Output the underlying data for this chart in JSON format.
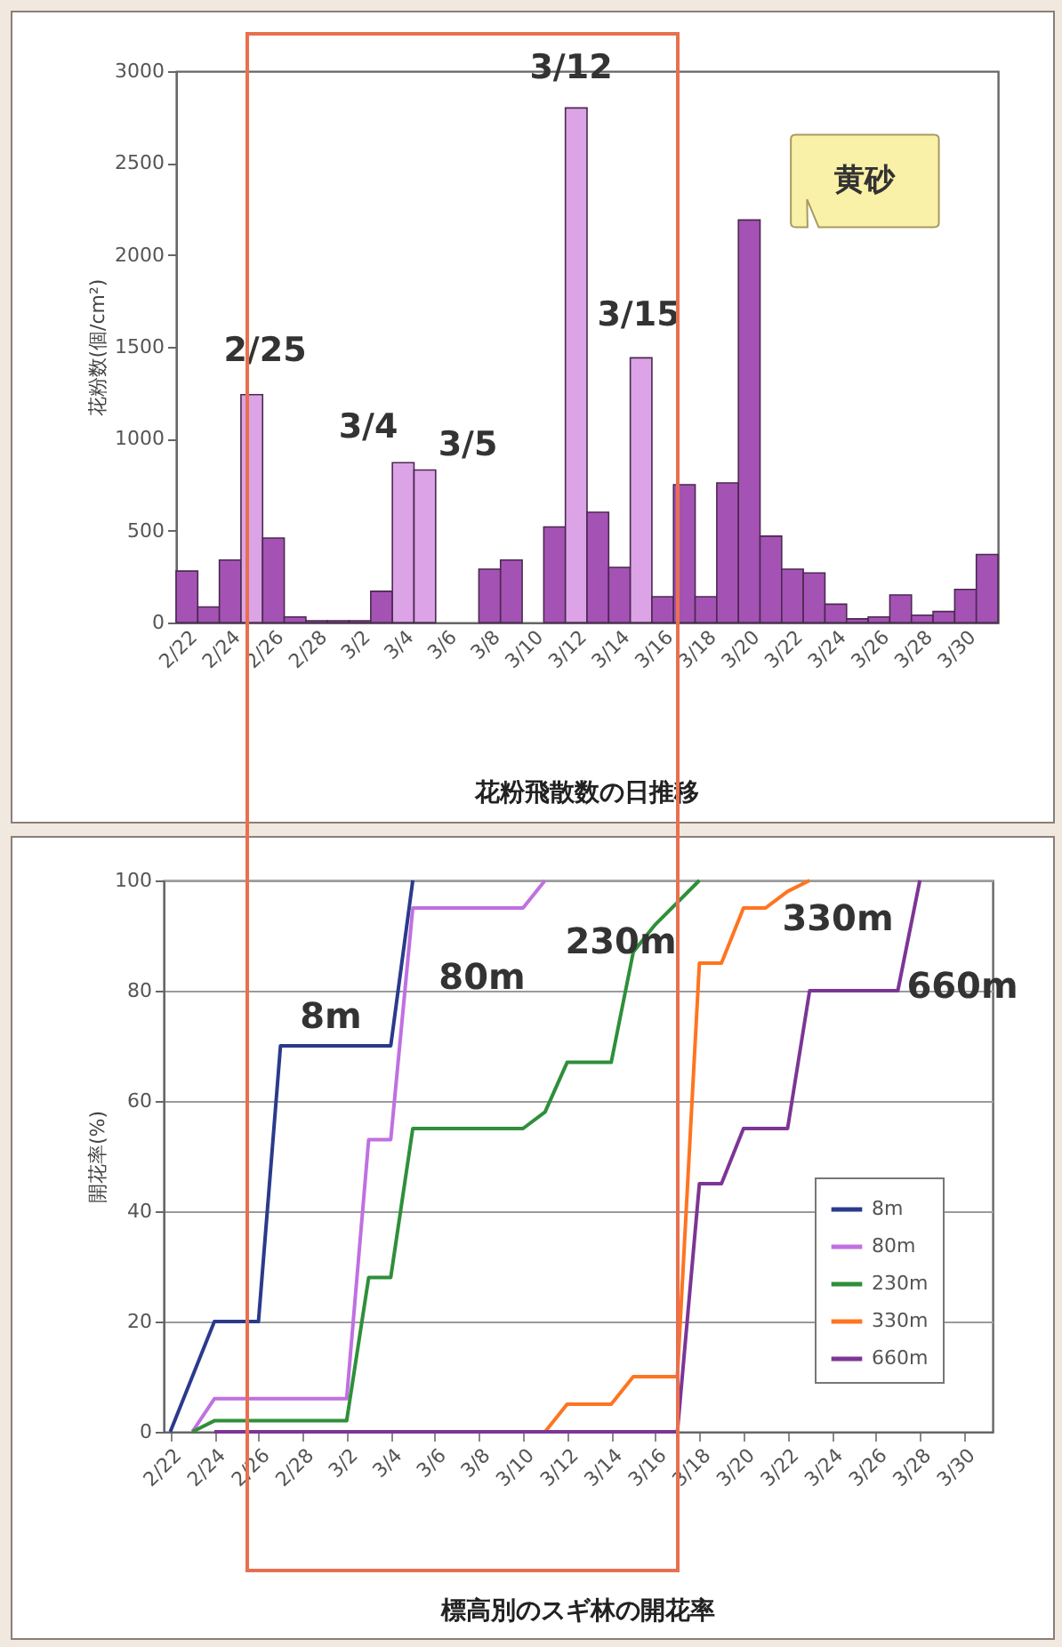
{
  "chart_data": [
    {
      "type": "bar",
      "title": "花粉飛散数の日推移",
      "ylabel": "花粉数(個/cm²)",
      "categories": [
        "2/22",
        null,
        "2/24",
        null,
        "2/26",
        null,
        "2/28",
        null,
        "3/2",
        null,
        "3/4",
        null,
        "3/6",
        null,
        "3/8",
        null,
        "3/10",
        null,
        "3/12",
        null,
        "3/14",
        null,
        "3/16",
        null,
        "3/18",
        null,
        "3/20",
        null,
        "3/22",
        null,
        "3/24",
        null,
        "3/26",
        null,
        "3/28",
        null,
        "3/30",
        null
      ],
      "values": [
        280,
        85,
        340,
        1240,
        460,
        30,
        10,
        10,
        10,
        170,
        870,
        830,
        0,
        0,
        290,
        340,
        0,
        520,
        2800,
        600,
        300,
        1440,
        140,
        750,
        140,
        760,
        2190,
        470,
        290,
        270,
        100,
        20,
        30,
        150,
        40,
        60,
        180,
        370
      ],
      "colors": [
        "#a552b5",
        "#a552b5",
        "#a552b5",
        "#dca3e6",
        "#a552b5",
        "#a552b5",
        "#a552b5",
        "#a552b5",
        "#a552b5",
        "#a552b5",
        "#dca3e6",
        "#dca3e6",
        "#a552b5",
        "#a552b5",
        "#a552b5",
        "#a552b5",
        "#a552b5",
        "#a552b5",
        "#dca3e6",
        "#a552b5",
        "#a552b5",
        "#dca3e6",
        "#a552b5",
        "#a552b5",
        "#a552b5",
        "#a552b5",
        "#a552b5",
        "#a552b5",
        "#a552b5",
        "#a552b5",
        "#a552b5",
        "#a552b5",
        "#a552b5",
        "#a552b5",
        "#a552b5",
        "#a552b5",
        "#a552b5",
        "#a552b5"
      ],
      "ylim": [
        0,
        3000
      ],
      "yticks": [
        0,
        500,
        1000,
        1500,
        2000,
        2500,
        3000
      ],
      "annotations": [
        "2/25",
        "3/4",
        "3/5",
        "3/12",
        "3/15",
        {
          "text": "黄砂",
          "x": "3/20",
          "y": 2190
        }
      ]
    },
    {
      "type": "line",
      "title": "標高別のスギ林の開花率",
      "ylabel": "開花率(%)",
      "categories": [
        "2/22",
        null,
        "2/24",
        null,
        "2/26",
        null,
        "2/28",
        null,
        "3/2",
        null,
        "3/4",
        null,
        "3/6",
        null,
        "3/8",
        null,
        "3/10",
        null,
        "3/12",
        null,
        "3/14",
        null,
        "3/16",
        null,
        "3/18",
        null,
        "3/20",
        null,
        "3/22",
        null,
        "3/24",
        null,
        "3/26",
        null,
        "3/28",
        null,
        "3/30",
        null
      ],
      "series": [
        {
          "name": "8m",
          "color": "#2b3a8c",
          "values": [
            0,
            10,
            20,
            20,
            20,
            70,
            70,
            70,
            70,
            70,
            70,
            100,
            null,
            null,
            null,
            null,
            null,
            null,
            null,
            null,
            null,
            null,
            null,
            null,
            null,
            null,
            null,
            null,
            null,
            null,
            null,
            null,
            null,
            null,
            null,
            null,
            null,
            null
          ]
        },
        {
          "name": "80m",
          "color": "#c070e0",
          "values": [
            null,
            0,
            6,
            6,
            6,
            6,
            6,
            6,
            6,
            53,
            53,
            95,
            95,
            95,
            95,
            95,
            95,
            100,
            null,
            null,
            null,
            null,
            null,
            null,
            null,
            null,
            null,
            null,
            null,
            null,
            null,
            null,
            null,
            null,
            null,
            null,
            null,
            null
          ]
        },
        {
          "name": "230m",
          "color": "#2f8f3a",
          "values": [
            null,
            0,
            2,
            2,
            2,
            2,
            2,
            2,
            2,
            28,
            28,
            55,
            55,
            55,
            55,
            55,
            55,
            58,
            67,
            67,
            67,
            87,
            92,
            96,
            100,
            null,
            null,
            null,
            null,
            null,
            null,
            null,
            null,
            null,
            null,
            null,
            null,
            null
          ]
        },
        {
          "name": "330m",
          "color": "#ff7420",
          "values": [
            null,
            null,
            null,
            null,
            null,
            null,
            null,
            null,
            null,
            null,
            null,
            null,
            null,
            null,
            null,
            null,
            null,
            0,
            5,
            5,
            5,
            10,
            10,
            10,
            85,
            85,
            95,
            95,
            98,
            100,
            null,
            null,
            null,
            null,
            null,
            null,
            null,
            null
          ]
        },
        {
          "name": "660m",
          "color": "#7d3595",
          "values": [
            null,
            null,
            0,
            0,
            0,
            0,
            0,
            0,
            0,
            0,
            0,
            0,
            0,
            0,
            0,
            0,
            0,
            0,
            0,
            0,
            0,
            0,
            0,
            0,
            45,
            45,
            55,
            55,
            55,
            80,
            80,
            80,
            80,
            80,
            100,
            null,
            null,
            null
          ]
        }
      ],
      "ylim": [
        0,
        100
      ],
      "yticks": [
        0,
        20,
        40,
        60,
        80,
        100
      ],
      "grid": "y",
      "legend": "bottom right",
      "marker": "none",
      "line_style": "solid",
      "annotations": [
        "8m",
        "80m",
        "230m",
        "330m",
        "660m"
      ]
    }
  ]
}
